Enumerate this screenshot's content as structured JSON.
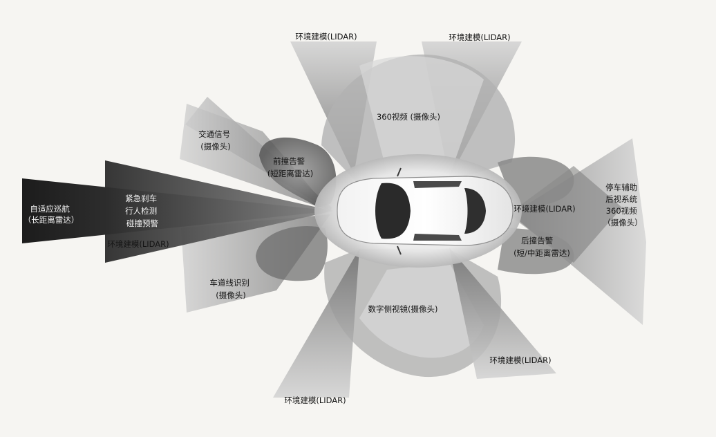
{
  "labels": {
    "acc": [
      "自适应巡航",
      "（长距离雷达）"
    ],
    "emergency": [
      "紧急刹车",
      "行人检测",
      "碰撞预警"
    ],
    "lidar_left": "环境建模(LIDAR)",
    "traffic_sign": [
      "交通信号",
      "(摄像头)"
    ],
    "front_collision": [
      "前撞告警",
      "(短距离雷达)"
    ],
    "lidar_top_left": "环境建模(LIDAR)",
    "lidar_top_right": "环境建模(LIDAR)",
    "view360_front": "360视频 (摄像头)",
    "lane_detect": [
      "车道线识别",
      "(摄像头)"
    ],
    "digital_mirror": "数字侧视镜(摄像头)",
    "lidar_bottom_left": "环境建模(LIDAR)",
    "lidar_bottom_right": "环境建模(LIDAR)",
    "lidar_rear": "环境建模(LIDAR)",
    "rear_collision": [
      "后撞告警",
      "(短/中距离雷达)"
    ],
    "park_assist": [
      "停车辅助",
      "后视系统",
      "360视频",
      "（摄像头）"
    ]
  }
}
